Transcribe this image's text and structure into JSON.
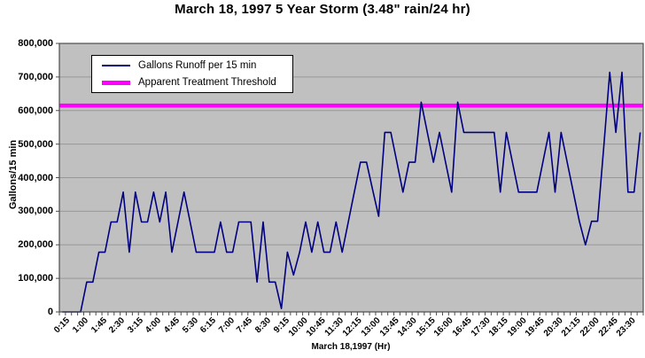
{
  "title": "March 18, 1997 5 Year Storm (3.48\" rain/24 hr)",
  "chart_data": {
    "type": "line",
    "title": "March 18, 1997 5 Year Storm (3.48\" rain/24 hr)",
    "xlabel": "March 18,1997 (Hr)",
    "ylabel": "Gallons/15 min",
    "ylim": [
      0,
      800000
    ],
    "ytick_interval": 100000,
    "ytick_labels": [
      "0",
      "100,000",
      "200,000",
      "300,000",
      "400,000",
      "500,000",
      "600,000",
      "700,000",
      "800,000"
    ],
    "x_start": "0:15",
    "x_interval_minutes": 15,
    "x_points": 96,
    "x_label_every": 3,
    "x_tick_labels": [
      "0:15",
      "1:00",
      "1:45",
      "2:30",
      "3:15",
      "4:00",
      "4:45",
      "5:30",
      "6:15",
      "7:00",
      "7:45",
      "8:30",
      "9:15",
      "10:00",
      "10:45",
      "11:30",
      "12:15",
      "13:00",
      "13:45",
      "14:30",
      "15:15",
      "16:00",
      "16:45",
      "17:30",
      "18:15",
      "19:00",
      "19:45",
      "20:30",
      "21:15",
      "22:00",
      "22:45",
      "23:30"
    ],
    "grid": true,
    "plot_bg": "#c0c0c0",
    "gridline_color": "#989898",
    "axis_color": "#4d4d4d",
    "legend_position": "top-left-inside",
    "series": [
      {
        "name": "Gallons Runoff per 15 min",
        "color": "#000080",
        "values": [
          0,
          0,
          0,
          0,
          89000,
          89000,
          178000,
          178000,
          268000,
          268000,
          357000,
          178000,
          357000,
          268000,
          268000,
          357000,
          268000,
          357000,
          178000,
          268000,
          357000,
          268000,
          178000,
          178000,
          178000,
          178000,
          268000,
          178000,
          178000,
          268000,
          268000,
          268000,
          89000,
          268000,
          89000,
          89000,
          10000,
          178000,
          110000,
          178000,
          268000,
          178000,
          268000,
          178000,
          178000,
          268000,
          178000,
          268000,
          357000,
          446000,
          446000,
          365000,
          285000,
          535000,
          535000,
          446000,
          357000,
          446000,
          446000,
          625000,
          535000,
          446000,
          535000,
          446000,
          357000,
          625000,
          535000,
          535000,
          535000,
          535000,
          535000,
          535000,
          357000,
          535000,
          446000,
          357000,
          357000,
          357000,
          357000,
          446000,
          535000,
          357000,
          535000,
          446000,
          357000,
          270000,
          200000,
          270000,
          270000,
          490000,
          714000,
          535000,
          714000,
          357000,
          357000,
          535000
        ]
      },
      {
        "name": "Apparent Treatment Threshold",
        "color": "#ff00ff",
        "type": "threshold-hline",
        "value": 615000
      }
    ]
  }
}
